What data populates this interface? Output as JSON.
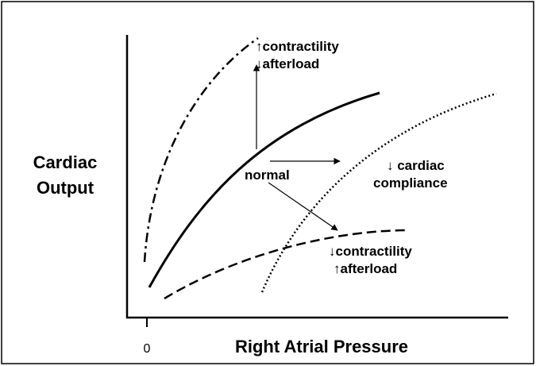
{
  "axes": {
    "y_label": [
      "Cardiac",
      "Output"
    ],
    "x_label": "Right Atrial Pressure",
    "x_origin": "0"
  },
  "labels": {
    "increased": [
      "↑contractility",
      "↓afterload"
    ],
    "normal": "normal",
    "compliance": [
      "↓ cardiac",
      "compliance"
    ],
    "decreased": [
      "↓contractility",
      "↑afterload"
    ]
  }
}
